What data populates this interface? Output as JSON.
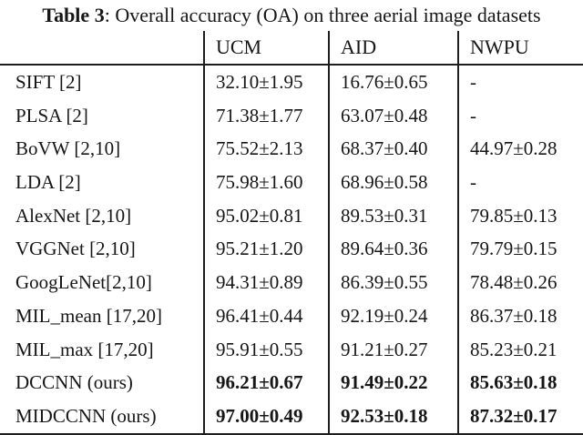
{
  "caption": {
    "bold": "Table 3",
    "rest": ": Overall accuracy (OA) on three aerial image datasets"
  },
  "table": {
    "columns": [
      "",
      "UCM",
      "AID",
      "NWPU"
    ],
    "rows": [
      {
        "method": "SIFT [2]",
        "ucm": "32.10±1.95",
        "aid": "16.76±0.65",
        "nwpu": "-"
      },
      {
        "method": "PLSA [2]",
        "ucm": "71.38±1.77",
        "aid": "63.07±0.48",
        "nwpu": "-"
      },
      {
        "method": "BoVW [2,10]",
        "ucm": "75.52±2.13",
        "aid": "68.37±0.40",
        "nwpu": "44.97±0.28"
      },
      {
        "method": "LDA [2]",
        "ucm": "75.98±1.60",
        "aid": "68.96±0.58",
        "nwpu": "-"
      },
      {
        "method": "AlexNet [2,10]",
        "ucm": "95.02±0.81",
        "aid": "89.53±0.31",
        "nwpu": "79.85±0.13"
      },
      {
        "method": "VGGNet [2,10]",
        "ucm": "95.21±1.20",
        "aid": "89.64±0.36",
        "nwpu": "79.79±0.15"
      },
      {
        "method": "GoogLeNet[2,10]",
        "ucm": "94.31±0.89",
        "aid": "86.39±0.55",
        "nwpu": "78.48±0.26"
      },
      {
        "method": "MIL_mean [17,20]",
        "ucm": "96.41±0.44",
        "aid": "92.19±0.24",
        "nwpu": "86.37±0.18"
      },
      {
        "method": "MIL_max [17,20]",
        "ucm": "95.91±0.55",
        "aid": "91.21±0.27",
        "nwpu": "85.23±0.21"
      },
      {
        "method": "DCCNN (ours)",
        "ucm": "96.21±0.67",
        "aid": "91.49±0.22",
        "nwpu": "85.63±0.18"
      },
      {
        "method": "MIDCCNN (ours)",
        "ucm": "97.00±0.49",
        "aid": "92.53±0.18",
        "nwpu": "87.32±0.17"
      }
    ]
  }
}
